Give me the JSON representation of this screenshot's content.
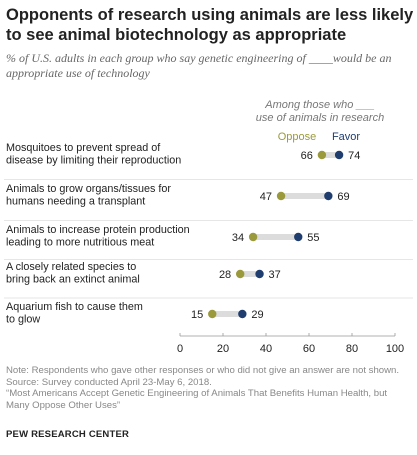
{
  "title": "Opponents of research using animals are less likely to see animal biotechnology  as appropriate",
  "subtitle": "% of U.S. adults in each group who say genetic engineering of ____would be an appropriate use of technology",
  "chart_data": {
    "type": "dot",
    "group_header": "Among those who ___ use of animals in research",
    "categories": [
      "Mosquitoes to prevent spread of disease by limiting their reproduction",
      "Animals to grow organs/tissues for humans needing a transplant",
      "Animals to increase protein production leading to more nutritious meat",
      "A closely related species to bring back an extinct animal",
      "Aquarium fish to cause them to glow"
    ],
    "category_lines": [
      [
        "Mosquitoes to prevent spread of",
        "disease by limiting their reproduction"
      ],
      [
        "Animals to grow organs/tissues for",
        "humans needing a transplant"
      ],
      [
        "Animals to increase protein production",
        "leading to more nutritious meat"
      ],
      [
        "A closely related species to",
        "bring back an extinct animal"
      ],
      [
        "Aquarium fish to cause them",
        "to glow"
      ]
    ],
    "series": [
      {
        "name": "Oppose",
        "color": "#9a9a3c",
        "values": [
          66,
          47,
          34,
          28,
          15
        ]
      },
      {
        "name": "Favor",
        "color": "#1f3d6e",
        "values": [
          74,
          69,
          55,
          37,
          29
        ]
      }
    ],
    "xlim": [
      0,
      100
    ],
    "xticks": [
      0,
      20,
      40,
      60,
      80,
      100
    ],
    "connector_color": "#dcdcdc",
    "grid": false
  },
  "note_lines": [
    "Note: Respondents who gave other responses or who did not give an answer are not shown.",
    "Source: Survey conducted April 23-May 6, 2018.",
    "“Most Americans Accept Genetic Engineering of Animals That Benefits Human Health, but",
    "Many Oppose Other Uses”"
  ],
  "source_org": "PEW RESEARCH CENTER"
}
